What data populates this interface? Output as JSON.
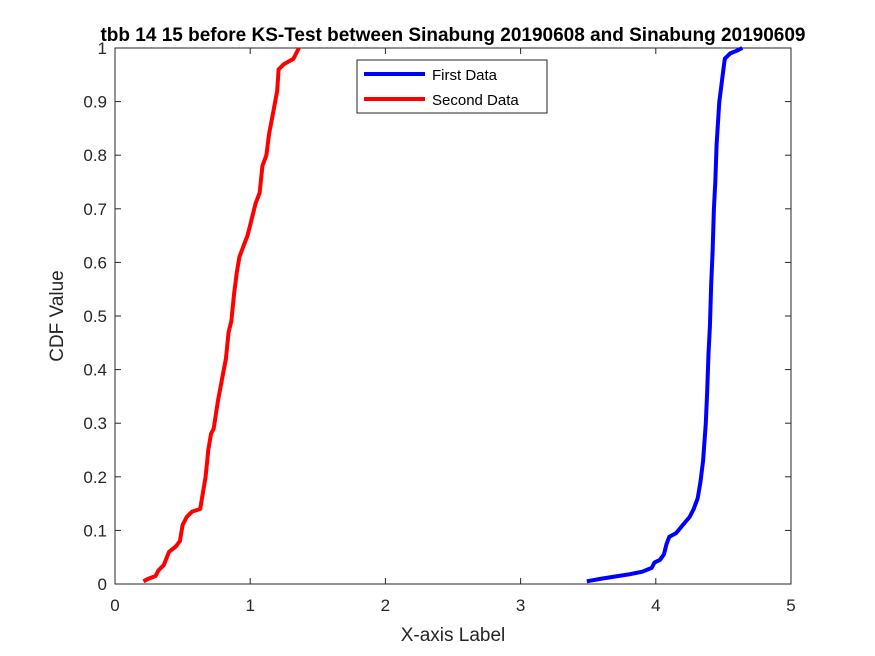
{
  "chart_data": {
    "type": "line",
    "title": "tbb 14 15 before KS-Test between Sinabung 20190608 and Sinabung 20190609",
    "xlabel": "X-axis Label",
    "ylabel": "CDF Value",
    "xlim": [
      0,
      5
    ],
    "ylim": [
      0,
      1
    ],
    "xticks": [
      "0",
      "1",
      "2",
      "3",
      "4",
      "5"
    ],
    "yticks": [
      "0",
      "0.1",
      "0.2",
      "0.3",
      "0.4",
      "0.5",
      "0.6",
      "0.7",
      "0.8",
      "0.9",
      "1"
    ],
    "grid": false,
    "legend_position": "top-center",
    "series": [
      {
        "name": "First Data",
        "color": "#0000ff",
        "points": [
          [
            3.49,
            0.005
          ],
          [
            3.6,
            0.01
          ],
          [
            3.7,
            0.014
          ],
          [
            3.8,
            0.018
          ],
          [
            3.9,
            0.023
          ],
          [
            3.97,
            0.03
          ],
          [
            3.99,
            0.04
          ],
          [
            4.03,
            0.045
          ],
          [
            4.06,
            0.055
          ],
          [
            4.08,
            0.075
          ],
          [
            4.1,
            0.088
          ],
          [
            4.15,
            0.095
          ],
          [
            4.2,
            0.11
          ],
          [
            4.25,
            0.125
          ],
          [
            4.28,
            0.14
          ],
          [
            4.31,
            0.16
          ],
          [
            4.33,
            0.19
          ],
          [
            4.35,
            0.23
          ],
          [
            4.37,
            0.3
          ],
          [
            4.38,
            0.36
          ],
          [
            4.39,
            0.43
          ],
          [
            4.4,
            0.48
          ],
          [
            4.41,
            0.56
          ],
          [
            4.42,
            0.62
          ],
          [
            4.43,
            0.7
          ],
          [
            4.44,
            0.75
          ],
          [
            4.45,
            0.82
          ],
          [
            4.47,
            0.9
          ],
          [
            4.48,
            0.92
          ],
          [
            4.5,
            0.96
          ],
          [
            4.51,
            0.98
          ],
          [
            4.55,
            0.99
          ],
          [
            4.6,
            0.995
          ],
          [
            4.64,
            1.0
          ]
        ]
      },
      {
        "name": "Second Data",
        "color": "#ff0000",
        "points": [
          [
            0.21,
            0.005
          ],
          [
            0.25,
            0.01
          ],
          [
            0.3,
            0.015
          ],
          [
            0.32,
            0.025
          ],
          [
            0.36,
            0.035
          ],
          [
            0.4,
            0.06
          ],
          [
            0.45,
            0.07
          ],
          [
            0.48,
            0.08
          ],
          [
            0.5,
            0.11
          ],
          [
            0.53,
            0.125
          ],
          [
            0.57,
            0.135
          ],
          [
            0.63,
            0.14
          ],
          [
            0.65,
            0.17
          ],
          [
            0.67,
            0.2
          ],
          [
            0.69,
            0.25
          ],
          [
            0.71,
            0.28
          ],
          [
            0.73,
            0.29
          ],
          [
            0.76,
            0.34
          ],
          [
            0.79,
            0.38
          ],
          [
            0.82,
            0.42
          ],
          [
            0.84,
            0.47
          ],
          [
            0.86,
            0.49
          ],
          [
            0.88,
            0.54
          ],
          [
            0.9,
            0.58
          ],
          [
            0.92,
            0.61
          ],
          [
            0.95,
            0.63
          ],
          [
            0.98,
            0.65
          ],
          [
            1.01,
            0.68
          ],
          [
            1.04,
            0.71
          ],
          [
            1.07,
            0.73
          ],
          [
            1.09,
            0.78
          ],
          [
            1.12,
            0.8
          ],
          [
            1.14,
            0.84
          ],
          [
            1.17,
            0.88
          ],
          [
            1.2,
            0.92
          ],
          [
            1.21,
            0.96
          ],
          [
            1.25,
            0.97
          ],
          [
            1.32,
            0.98
          ],
          [
            1.36,
            1.0
          ]
        ]
      }
    ]
  }
}
